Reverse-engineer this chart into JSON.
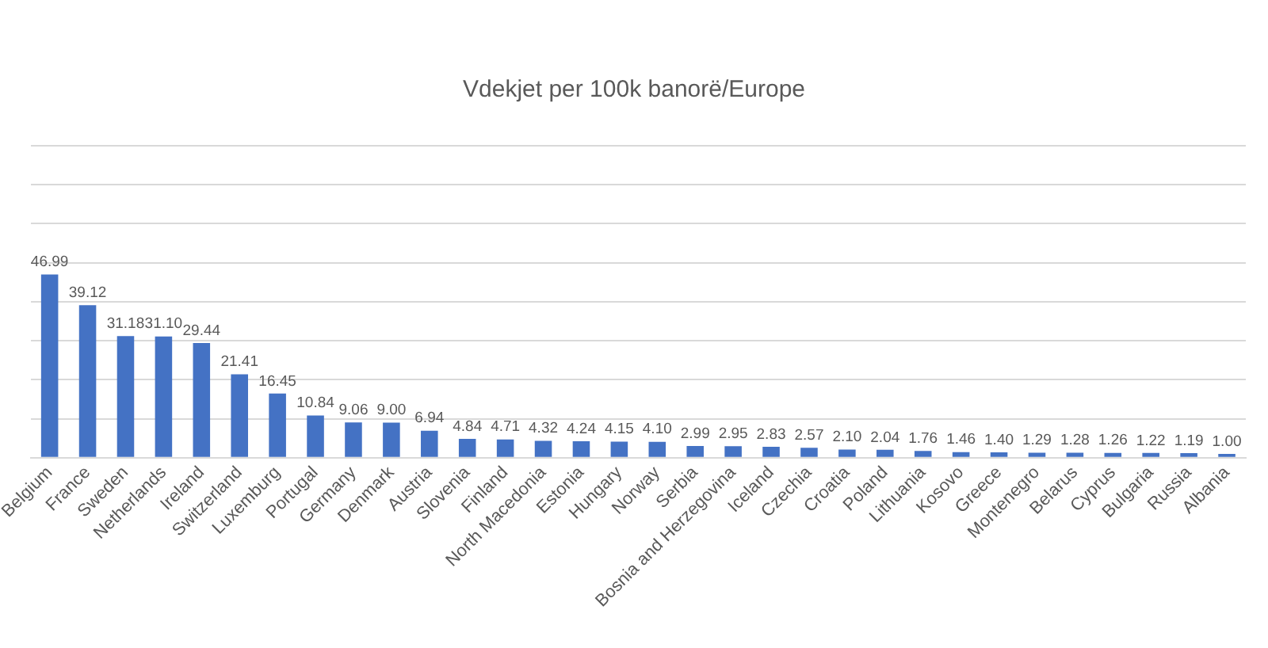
{
  "chart_data": {
    "type": "bar",
    "title": "Vdekjet per 100k banorë/Europe",
    "categories": [
      "Belgium",
      "France",
      "Sweden",
      "Netherlands",
      "Ireland",
      "Switzerland",
      "Luxemburg",
      "Portugal",
      "Germany",
      "Denmark",
      "Austria",
      "Slovenia",
      "Finland",
      "North Macedonia",
      "Estonia",
      "Hungary",
      "Norway",
      "Serbia",
      "Bosnia and Herzegovina",
      "Iceland",
      "Czechia",
      "Croatia",
      "Poland",
      "Lithuania",
      "Kosovo",
      "Greece",
      "Montenegro",
      "Belarus",
      "Cyprus",
      "Bulgaria",
      "Russia",
      "Albania"
    ],
    "values": [
      46.99,
      39.12,
      31.18,
      31.1,
      29.44,
      21.41,
      16.45,
      10.84,
      9.06,
      9.0,
      6.94,
      4.84,
      4.71,
      4.32,
      4.24,
      4.15,
      4.1,
      2.99,
      2.95,
      2.83,
      2.57,
      2.1,
      2.04,
      1.76,
      1.46,
      1.4,
      1.29,
      1.28,
      1.26,
      1.22,
      1.19,
      1.0
    ],
    "value_labels": [
      "46.99",
      "39.12",
      "31.18",
      "31.10",
      "29.44",
      "21.41",
      "16.45",
      "10.84",
      "9.06",
      "9.00",
      "6.94",
      "4.84",
      "4.71",
      "4.32",
      "4.24",
      "4.15",
      "4.10",
      "2.99",
      "2.95",
      "2.83",
      "2.57",
      "2.10",
      "2.04",
      "1.76",
      "1.46",
      "1.40",
      "1.29",
      "1.28",
      "1.26",
      "1.22",
      "1.19",
      "1.00"
    ],
    "color": "#4472c4",
    "grid": "y",
    "legend": false,
    "tick_labels": "x",
    "ylim": [
      0,
      80
    ],
    "yticks": [
      {
        "value": 0,
        "label": null
      },
      {
        "value": 10,
        "label": null
      },
      {
        "value": 20,
        "label": null
      },
      {
        "value": 30,
        "label": null
      },
      {
        "value": 40,
        "label": null
      },
      {
        "value": 50,
        "label": null
      },
      {
        "value": 60,
        "label": null
      },
      {
        "value": 70,
        "label": null
      },
      {
        "value": 80,
        "label": null
      }
    ]
  }
}
